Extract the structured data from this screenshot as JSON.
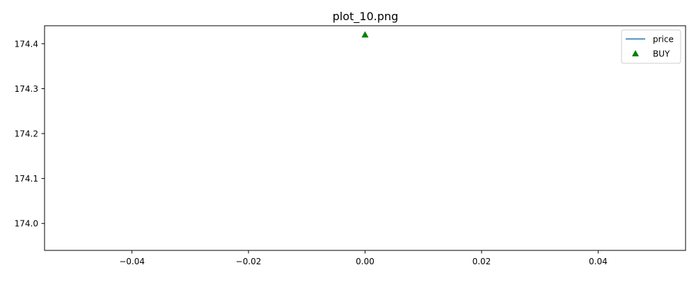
{
  "chart_data": {
    "type": "line",
    "title": "plot_10.png",
    "xlabel": "",
    "ylabel": "",
    "xlim": [
      -0.055,
      0.055
    ],
    "ylim": [
      173.94,
      174.44
    ],
    "x_ticks": [
      -0.04,
      -0.02,
      0.0,
      0.02,
      0.04
    ],
    "x_tick_labels": [
      "−0.04",
      "−0.02",
      "0.00",
      "0.02",
      "0.04"
    ],
    "y_ticks": [
      174.0,
      174.1,
      174.2,
      174.3,
      174.4
    ],
    "y_tick_labels": [
      "174.0",
      "174.1",
      "174.2",
      "174.3",
      "174.4"
    ],
    "grid": false,
    "legend_position": "top-right",
    "series": [
      {
        "name": "price",
        "kind": "line",
        "color": "#1f77b4",
        "x": [
          0.0
        ],
        "y": [
          174.42
        ]
      },
      {
        "name": "BUY",
        "kind": "scatter",
        "marker": "triangle-up",
        "color": "#008000",
        "x": [
          0.0
        ],
        "y": [
          174.42
        ]
      }
    ]
  }
}
